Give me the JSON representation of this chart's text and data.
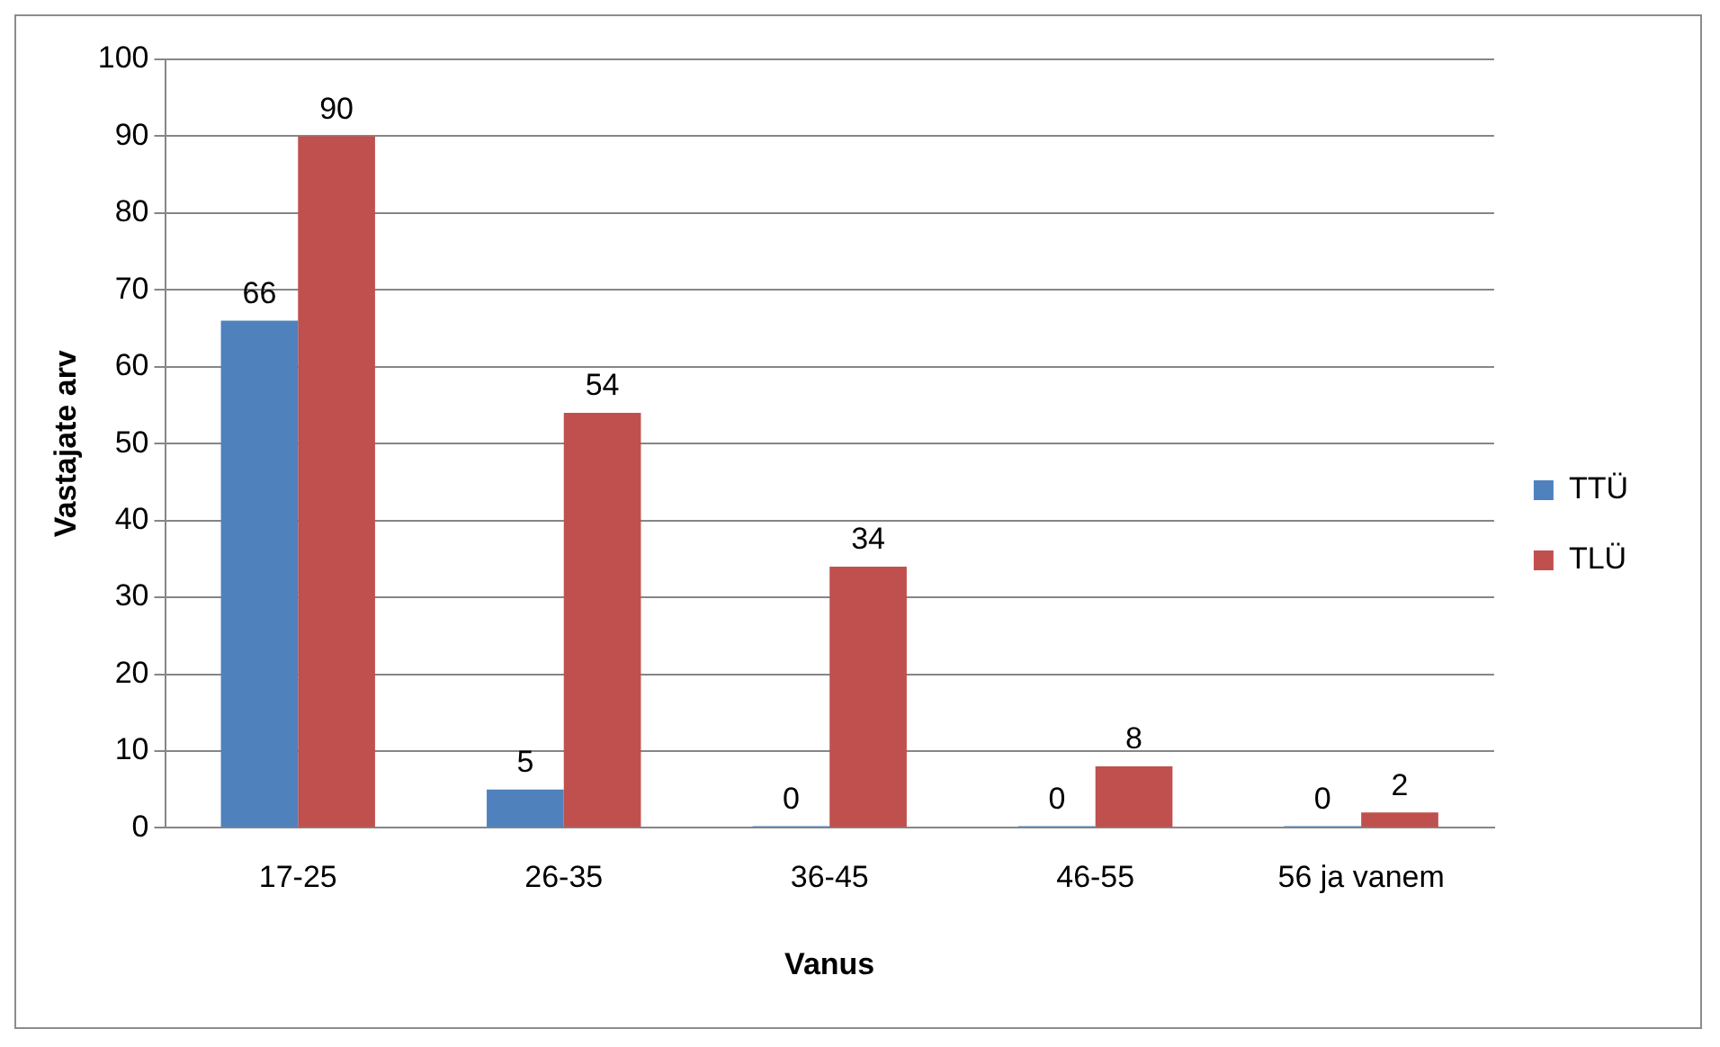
{
  "chart_data": {
    "type": "bar",
    "xlabel": "Vanus",
    "ylabel": "Vastajate arv",
    "categories": [
      "17-25",
      "26-35",
      "36-45",
      "46-55",
      "56 ja vanem"
    ],
    "series": [
      {
        "name": "TTÜ",
        "color": "#4f81bd",
        "values": [
          66,
          5,
          0,
          0,
          0
        ]
      },
      {
        "name": "TLÜ",
        "color": "#c0504d",
        "values": [
          90,
          54,
          34,
          8,
          2
        ]
      }
    ],
    "ylim": [
      0,
      100
    ],
    "yticks": [
      0,
      10,
      20,
      30,
      40,
      50,
      60,
      70,
      80,
      90,
      100
    ],
    "grid": "y",
    "legend": "right",
    "data_labels": true
  }
}
